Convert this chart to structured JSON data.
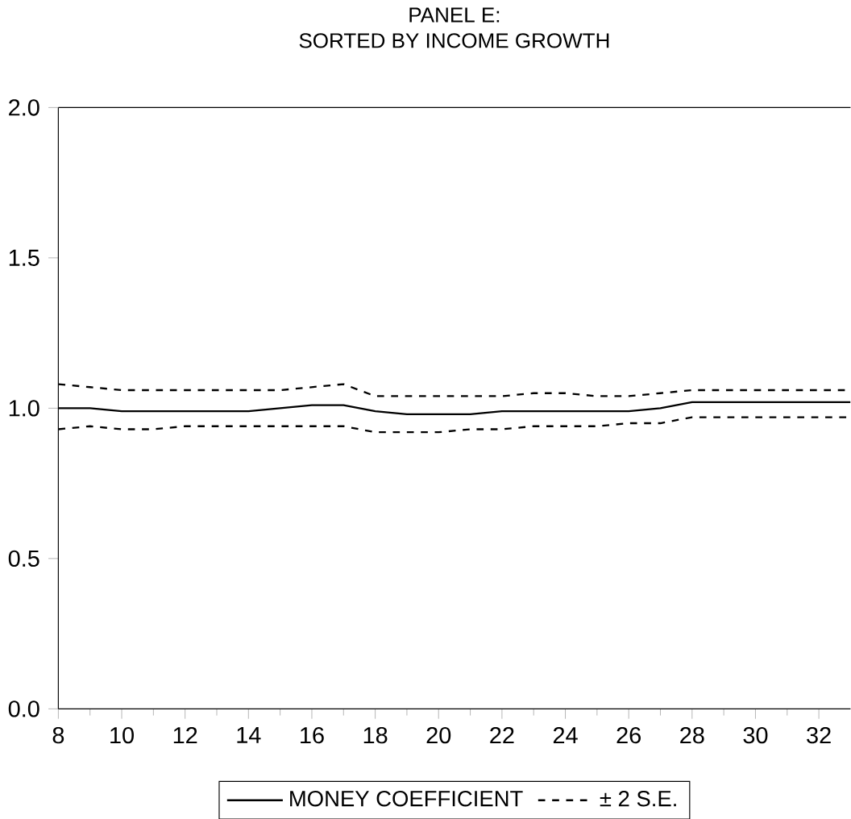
{
  "chart_data": {
    "type": "line",
    "title": "PANEL E:\nSORTED BY INCOME GROWTH",
    "x": [
      8,
      9,
      10,
      11,
      12,
      13,
      14,
      15,
      16,
      17,
      18,
      19,
      20,
      21,
      22,
      23,
      24,
      25,
      26,
      27,
      28,
      29,
      30,
      31,
      32,
      33
    ],
    "series": [
      {
        "name": "MONEY COEFFICIENT",
        "color": "#000000",
        "line_style": "solid",
        "values": [
          1.0,
          1.0,
          0.99,
          0.99,
          0.99,
          0.99,
          0.99,
          1.0,
          1.01,
          1.01,
          0.99,
          0.98,
          0.98,
          0.98,
          0.99,
          0.99,
          0.99,
          0.99,
          0.99,
          1.0,
          1.02,
          1.02,
          1.02,
          1.02,
          1.02,
          1.02
        ]
      },
      {
        "name": "± 2 S.E.",
        "color": "#000000",
        "line_style": "dashed",
        "values": [
          1.08,
          1.07,
          1.06,
          1.06,
          1.06,
          1.06,
          1.06,
          1.06,
          1.07,
          1.08,
          1.04,
          1.04,
          1.04,
          1.04,
          1.04,
          1.05,
          1.05,
          1.04,
          1.04,
          1.05,
          1.06,
          1.06,
          1.06,
          1.06,
          1.06,
          1.06
        ]
      },
      {
        "color": "#000000",
        "line_style": "dashed",
        "values": [
          0.93,
          0.94,
          0.93,
          0.93,
          0.94,
          0.94,
          0.94,
          0.94,
          0.94,
          0.94,
          0.92,
          0.92,
          0.92,
          0.93,
          0.93,
          0.94,
          0.94,
          0.94,
          0.95,
          0.95,
          0.97,
          0.97,
          0.97,
          0.97,
          0.97,
          0.97
        ]
      }
    ],
    "xlim": [
      8,
      33
    ],
    "ylim": [
      0,
      2
    ],
    "xticks": [
      8,
      10,
      12,
      14,
      16,
      18,
      20,
      22,
      24,
      26,
      28,
      30,
      32
    ],
    "yticks": [
      {
        "value": 0,
        "label": "0.0"
      },
      {
        "value": 0.5,
        "label": "0.5"
      },
      {
        "value": 1,
        "label": "1.0"
      },
      {
        "value": 1.5,
        "label": "1.5"
      },
      {
        "value": 2,
        "label": "2.0"
      }
    ],
    "legend": "bottom",
    "grid": false,
    "marker": "none"
  }
}
